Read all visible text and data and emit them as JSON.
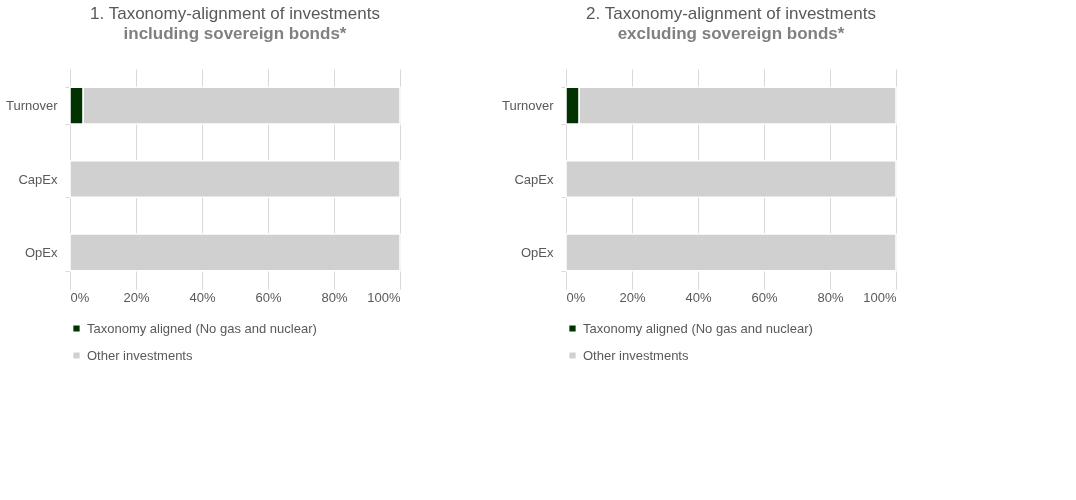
{
  "chart_data": [
    {
      "type": "bar",
      "orientation": "horizontal",
      "stacked": true,
      "title": "1. Taxonomy-alignment of investments",
      "subtitle": "including sovereign bonds*",
      "categories": [
        "Turnover",
        "CapEx",
        "OpEx"
      ],
      "series": [
        {
          "name": "Taxonomy aligned (No gas and nuclear)",
          "color": "#003300",
          "values": [
            4,
            0,
            0
          ]
        },
        {
          "name": "Other investments",
          "color": "#d0d0d0",
          "values": [
            96,
            100,
            100
          ]
        }
      ],
      "xlim": [
        0,
        100
      ],
      "xticks": [
        {
          "value": 0,
          "label": "0%"
        },
        {
          "value": 20,
          "label": "20%"
        },
        {
          "value": 40,
          "label": "40%"
        },
        {
          "value": 60,
          "label": "60%"
        },
        {
          "value": 80,
          "label": "80%"
        },
        {
          "value": 100,
          "label": "100%"
        }
      ],
      "grid": "x",
      "legend": "bottom"
    },
    {
      "type": "bar",
      "orientation": "horizontal",
      "stacked": true,
      "title": "2. Taxonomy-alignment of investments",
      "subtitle": "excluding sovereign bonds*",
      "categories": [
        "Turnover",
        "CapEx",
        "OpEx"
      ],
      "series": [
        {
          "name": "Taxonomy aligned (No gas and nuclear)",
          "color": "#003300",
          "values": [
            4,
            0,
            0
          ]
        },
        {
          "name": "Other investments",
          "color": "#d0d0d0",
          "values": [
            96,
            100,
            100
          ]
        }
      ],
      "xlim": [
        0,
        100
      ],
      "xticks": [
        {
          "value": 0,
          "label": "0%"
        },
        {
          "value": 20,
          "label": "20%"
        },
        {
          "value": 40,
          "label": "40%"
        },
        {
          "value": 60,
          "label": "60%"
        },
        {
          "value": 80,
          "label": "80%"
        },
        {
          "value": 100,
          "label": "100%"
        }
      ],
      "grid": "x",
      "legend": "bottom"
    }
  ]
}
